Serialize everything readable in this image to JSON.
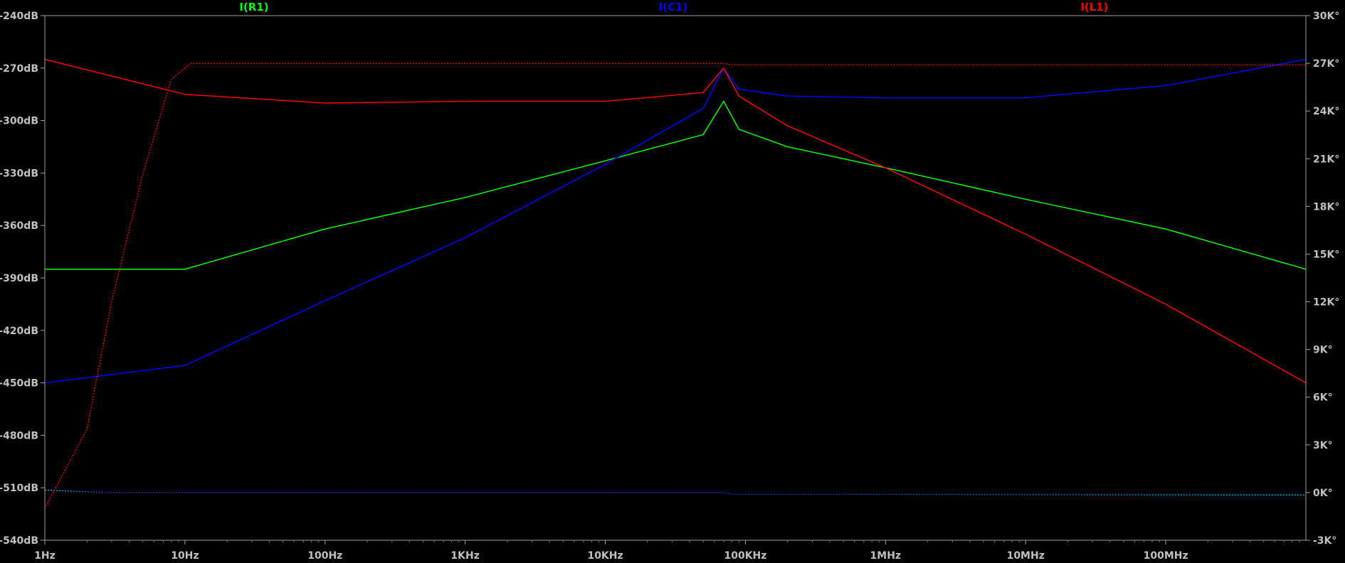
{
  "chart_data": {
    "type": "line",
    "x_scale": "log",
    "grid": false,
    "x_ticks": [
      "1Hz",
      "10Hz",
      "100Hz",
      "1KHz",
      "10KHz",
      "100KHz",
      "1MHz",
      "10MHz",
      "100MHz"
    ],
    "x_tick_values": [
      1,
      10,
      100,
      1000,
      10000,
      100000,
      1000000,
      10000000,
      100000000
    ],
    "x_range_hz": [
      1,
      1000000000
    ],
    "y_left_ticks": [
      "-240dB",
      "-270dB",
      "-300dB",
      "-330dB",
      "-360dB",
      "-390dB",
      "-420dB",
      "-450dB",
      "-480dB",
      "-510dB",
      "-540dB"
    ],
    "y_left_range_db": [
      -540,
      -240
    ],
    "y_right_ticks": [
      "30K°",
      "27K°",
      "24K°",
      "21K°",
      "18K°",
      "15K°",
      "12K°",
      "9K°",
      "6K°",
      "3K°",
      "0K°",
      "-3K°"
    ],
    "y_right_range_deg": [
      -3000,
      30000
    ],
    "series": [
      {
        "name": "I(R1)",
        "color": "#00ff00",
        "magnitude_db": [
          [
            1,
            -385
          ],
          [
            10,
            -385
          ],
          [
            100,
            -362
          ],
          [
            1000,
            -344
          ],
          [
            10000,
            -323
          ],
          [
            50000,
            -308
          ],
          [
            70000,
            -289
          ],
          [
            90000,
            -305
          ],
          [
            200000,
            -315
          ],
          [
            1000000,
            -327
          ],
          [
            10000000,
            -345
          ],
          [
            100000000,
            -362
          ],
          [
            1000000000,
            -385
          ]
        ],
        "phase_deg": [
          [
            1,
            150
          ],
          [
            3,
            0
          ],
          [
            70000,
            0
          ],
          [
            80000,
            -100
          ],
          [
            1000000000,
            -150
          ]
        ]
      },
      {
        "name": "I(C1)",
        "color": "#0000ff",
        "magnitude_db": [
          [
            1,
            -450
          ],
          [
            10,
            -440
          ],
          [
            100,
            -403
          ],
          [
            1000,
            -367
          ],
          [
            10000,
            -325
          ],
          [
            50000,
            -293
          ],
          [
            70000,
            -270
          ],
          [
            90000,
            -282
          ],
          [
            200000,
            -286
          ],
          [
            1000000,
            -287
          ],
          [
            10000000,
            -287
          ],
          [
            100000000,
            -280
          ],
          [
            1000000000,
            -265
          ]
        ],
        "phase_deg": [
          [
            1,
            200
          ],
          [
            3,
            0
          ],
          [
            70000,
            0
          ],
          [
            80000,
            -100
          ],
          [
            1000000000,
            -100
          ]
        ]
      },
      {
        "name": "I(L1)",
        "color": "#ff0000",
        "magnitude_db": [
          [
            1,
            -265
          ],
          [
            10,
            -285
          ],
          [
            100,
            -290
          ],
          [
            1000,
            -289
          ],
          [
            10000,
            -289
          ],
          [
            50000,
            -284
          ],
          [
            70000,
            -270
          ],
          [
            90000,
            -286
          ],
          [
            200000,
            -303
          ],
          [
            1000000,
            -327
          ],
          [
            10000000,
            -365
          ],
          [
            100000000,
            -405
          ],
          [
            1000000000,
            -450
          ]
        ],
        "phase_deg": [
          [
            1,
            -1000
          ],
          [
            2,
            4000
          ],
          [
            3,
            12000
          ],
          [
            5,
            20000
          ],
          [
            8,
            26000
          ],
          [
            11,
            27000
          ],
          [
            70000,
            27000
          ],
          [
            80000,
            26900
          ],
          [
            1000000000,
            26900
          ]
        ]
      }
    ]
  }
}
